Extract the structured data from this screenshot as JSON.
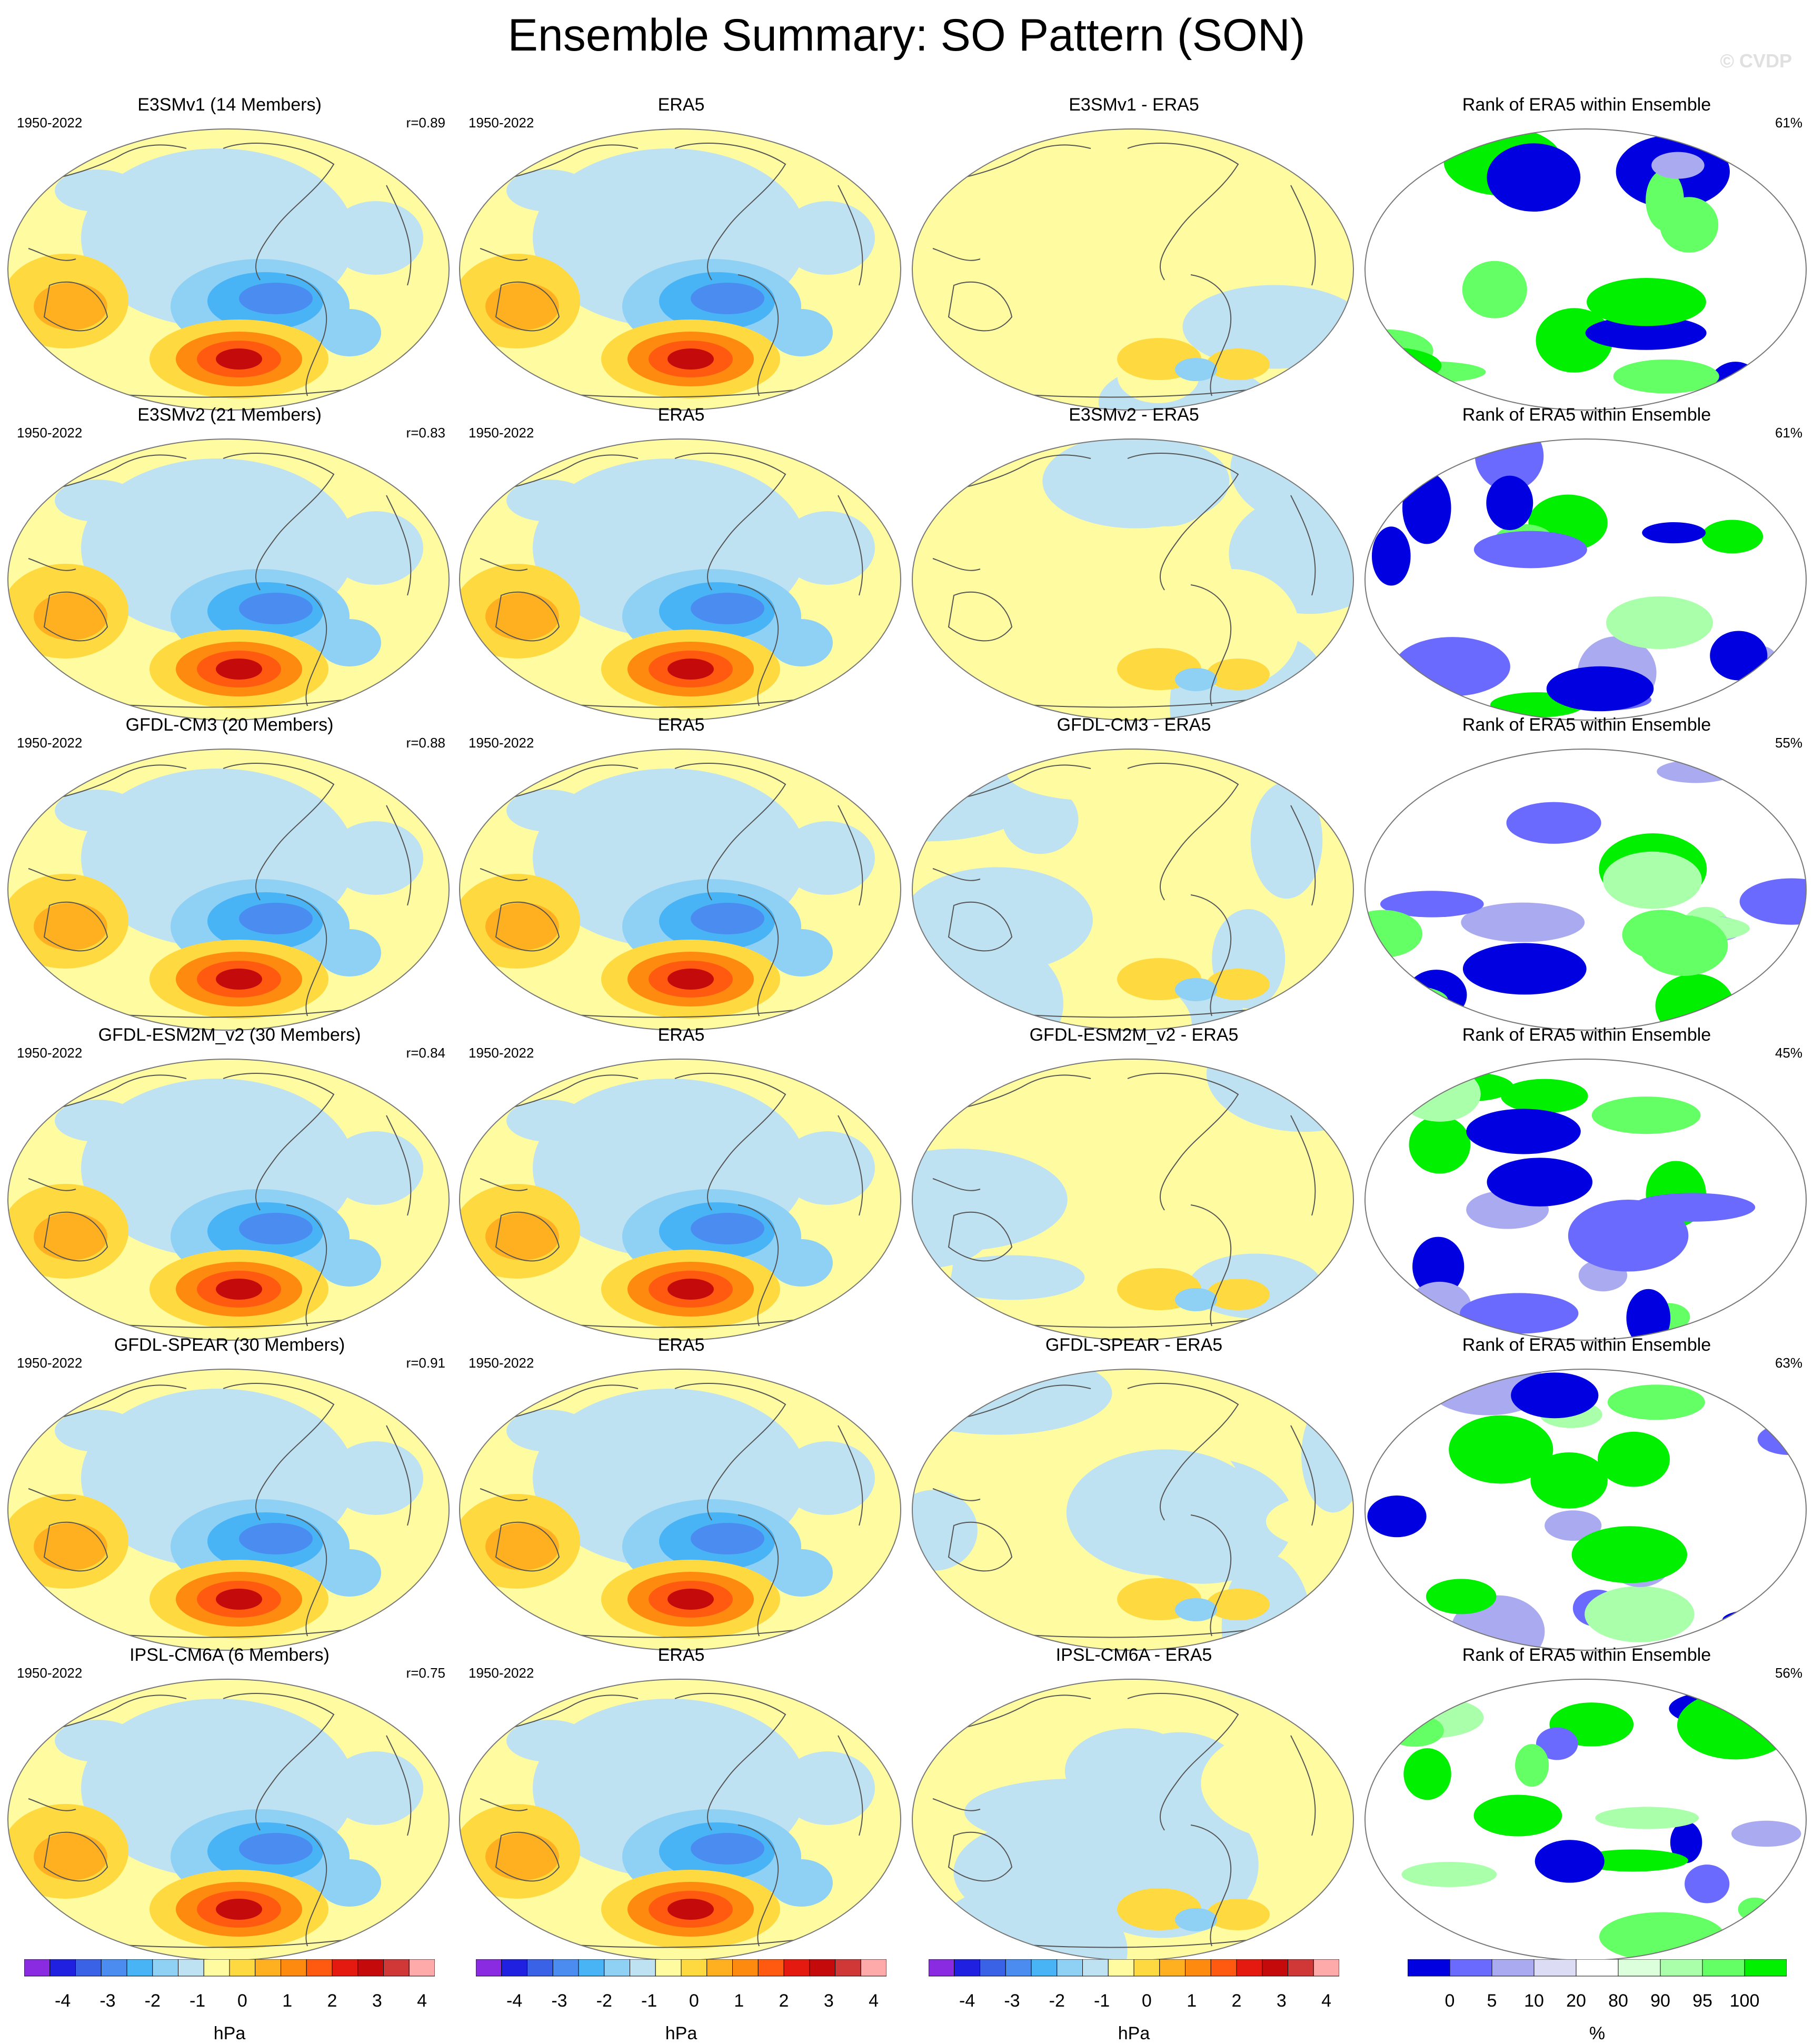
{
  "title": "Ensemble Summary: SO Pattern (SON)",
  "watermark": "© CVDP",
  "colors": {
    "diverging": [
      "#8a2be2",
      "#2020e0",
      "#3a62e6",
      "#4a8cf0",
      "#49b4f5",
      "#8fd0f5",
      "#bfe2f2",
      "#fffba0",
      "#ffd940",
      "#ffb020",
      "#ff8a10",
      "#ff5a10",
      "#e41a10",
      "#c40a0a",
      "#d03838",
      "#ffaaaa"
    ],
    "rank": [
      "#0000e0",
      "#6a6aff",
      "#aaaaf0",
      "#dcdcf5",
      "#ffffff",
      "#dcffdc",
      "#aaffaa",
      "#64ff64",
      "#00f000"
    ],
    "coast": "#555555"
  },
  "rows": [
    {
      "model": {
        "title": "E3SMv1 (14 Members)",
        "period": "1950-2022",
        "r": "r=0.89"
      },
      "obs": {
        "title": "ERA5",
        "period": "1950-2022"
      },
      "diff": {
        "title": "E3SMv1 - ERA5"
      },
      "rank": {
        "title": "Rank of ERA5 within Ensemble",
        "pct": "61%"
      }
    },
    {
      "model": {
        "title": "E3SMv2 (21 Members)",
        "period": "1950-2022",
        "r": "r=0.83"
      },
      "obs": {
        "title": "ERA5",
        "period": "1950-2022"
      },
      "diff": {
        "title": "E3SMv2 - ERA5"
      },
      "rank": {
        "title": "Rank of ERA5 within Ensemble",
        "pct": "61%"
      }
    },
    {
      "model": {
        "title": "GFDL-CM3 (20 Members)",
        "period": "1950-2022",
        "r": "r=0.88"
      },
      "obs": {
        "title": "ERA5",
        "period": "1950-2022"
      },
      "diff": {
        "title": "GFDL-CM3 - ERA5"
      },
      "rank": {
        "title": "Rank of ERA5 within Ensemble",
        "pct": "55%"
      }
    },
    {
      "model": {
        "title": "GFDL-ESM2M_v2 (30 Members)",
        "period": "1950-2022",
        "r": "r=0.84"
      },
      "obs": {
        "title": "ERA5",
        "period": "1950-2022"
      },
      "diff": {
        "title": "GFDL-ESM2M_v2 - ERA5"
      },
      "rank": {
        "title": "Rank of ERA5 within Ensemble",
        "pct": "45%"
      }
    },
    {
      "model": {
        "title": "GFDL-SPEAR (30 Members)",
        "period": "1950-2022",
        "r": "r=0.91"
      },
      "obs": {
        "title": "ERA5",
        "period": "1950-2022"
      },
      "diff": {
        "title": "GFDL-SPEAR - ERA5"
      },
      "rank": {
        "title": "Rank of ERA5 within Ensemble",
        "pct": "63%"
      }
    },
    {
      "model": {
        "title": "IPSL-CM6A (6 Members)",
        "period": "1950-2022",
        "r": "r=0.75"
      },
      "obs": {
        "title": "ERA5",
        "period": "1950-2022"
      },
      "diff": {
        "title": "IPSL-CM6A - ERA5"
      },
      "rank": {
        "title": "Rank of ERA5 within Ensemble",
        "pct": "56%"
      }
    }
  ],
  "colorbars": [
    {
      "unit": "hPa",
      "ticks": [
        "-4",
        "-3",
        "-2",
        "-1",
        "0",
        "1",
        "2",
        "3",
        "4"
      ]
    },
    {
      "unit": "hPa",
      "ticks": [
        "-4",
        "-3",
        "-2",
        "-1",
        "0",
        "1",
        "2",
        "3",
        "4"
      ]
    },
    {
      "unit": "hPa",
      "ticks": [
        "-4",
        "-3",
        "-2",
        "-1",
        "0",
        "1",
        "2",
        "3",
        "4"
      ]
    },
    {
      "unit": "%",
      "ticks": [
        "0",
        "5",
        "10",
        "20",
        "80",
        "90",
        "95",
        "100"
      ]
    }
  ],
  "chart_data": {
    "type": "heatmap",
    "title": "Ensemble Summary: SO Pattern (SON)",
    "projection": "global map, Pacific-centered",
    "contour_levels_hPa": [
      -4.5,
      -4,
      -3.5,
      -3,
      -2.5,
      -2,
      -1.5,
      -1,
      -0.5,
      0,
      0.5,
      1,
      1.5,
      2,
      2.5,
      3,
      3.5,
      4,
      4.5
    ],
    "rank_levels_pct": [
      0,
      5,
      10,
      20,
      80,
      90,
      95,
      100
    ],
    "pattern_correlations": [
      {
        "model": "E3SMv1",
        "members": 14,
        "r": 0.89,
        "rank_pct": 61
      },
      {
        "model": "E3SMv2",
        "members": 21,
        "r": 0.83,
        "rank_pct": 61
      },
      {
        "model": "GFDL-CM3",
        "members": 20,
        "r": 0.88,
        "rank_pct": 55
      },
      {
        "model": "GFDL-ESM2M_v2",
        "members": 30,
        "r": 0.84,
        "rank_pct": 45
      },
      {
        "model": "GFDL-SPEAR",
        "members": 30,
        "r": 0.91,
        "rank_pct": 63
      },
      {
        "model": "IPSL-CM6A",
        "members": 6,
        "r": 0.75,
        "rank_pct": 56
      }
    ]
  }
}
